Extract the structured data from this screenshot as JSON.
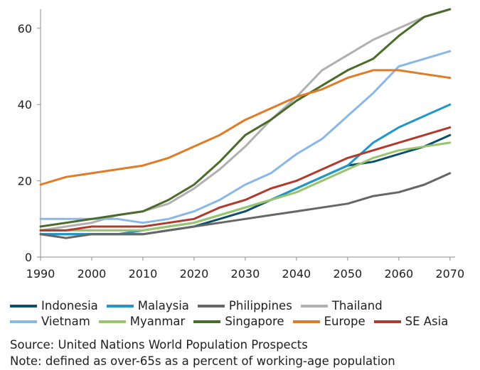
{
  "chart_data": {
    "type": "line",
    "x": [
      1990,
      1995,
      2000,
      2005,
      2010,
      2015,
      2020,
      2025,
      2030,
      2035,
      2040,
      2045,
      2050,
      2055,
      2060,
      2065,
      2070
    ],
    "xticks": [
      "1990",
      "2000",
      "2010",
      "2020",
      "2030",
      "2040",
      "2050",
      "2060",
      "2070"
    ],
    "yticks": [
      "0",
      "20",
      "40",
      "60"
    ],
    "xlim": [
      1990,
      2071
    ],
    "ylim": [
      0,
      65
    ],
    "grid": false,
    "legend_position": "bottom",
    "series": [
      {
        "name": "Indonesia",
        "color": "#0b4f6c",
        "values": [
          6,
          6,
          6,
          6,
          6,
          7,
          8,
          10,
          12,
          15,
          18,
          21,
          24,
          25,
          27,
          29,
          32
        ]
      },
      {
        "name": "Malaysia",
        "color": "#2196c9",
        "values": [
          6,
          6,
          6,
          6,
          7,
          8,
          9,
          11,
          13,
          15,
          18,
          21,
          24,
          30,
          34,
          37,
          40
        ]
      },
      {
        "name": "Philippines",
        "color": "#666666",
        "values": [
          6,
          5,
          6,
          6,
          6,
          7,
          8,
          9,
          10,
          11,
          12,
          13,
          14,
          16,
          17,
          19,
          22
        ]
      },
      {
        "name": "Thailand",
        "color": "#b0b0b0",
        "values": [
          7,
          8,
          9,
          11,
          12,
          14,
          18,
          23,
          29,
          36,
          42,
          49,
          53,
          57,
          60,
          63,
          65
        ]
      },
      {
        "name": "Vietnam",
        "color": "#8ab8e6",
        "values": [
          10,
          10,
          10,
          10,
          9,
          10,
          12,
          15,
          19,
          22,
          27,
          31,
          37,
          43,
          50,
          52,
          54
        ]
      },
      {
        "name": "Myanmar",
        "color": "#9ac46b",
        "values": [
          7,
          7,
          7,
          7,
          7,
          8,
          9,
          11,
          13,
          15,
          17,
          20,
          23,
          26,
          28,
          29,
          30
        ]
      },
      {
        "name": "Singapore",
        "color": "#4a6b2a",
        "values": [
          8,
          9,
          10,
          11,
          12,
          15,
          19,
          25,
          32,
          36,
          41,
          45,
          49,
          52,
          58,
          63,
          65
        ]
      },
      {
        "name": "Europe",
        "color": "#e07b27",
        "values": [
          19,
          21,
          22,
          23,
          24,
          26,
          29,
          32,
          36,
          39,
          42,
          44,
          47,
          49,
          49,
          48,
          47
        ]
      },
      {
        "name": "SE Asia",
        "color": "#b03a2e",
        "values": [
          7,
          7,
          8,
          8,
          8,
          9,
          10,
          13,
          15,
          18,
          20,
          23,
          26,
          28,
          30,
          32,
          34
        ]
      }
    ]
  },
  "legend_rows": [
    [
      "Indonesia",
      "Malaysia",
      "Philippines",
      "Thailand"
    ],
    [
      "Vietnam",
      "Myanmar",
      "Singapore",
      "Europe",
      "SE Asia"
    ]
  ],
  "notes": {
    "source": "Source: United Nations World Population Prospects",
    "note": "Note: defined as over-65s as a percent of working-age population"
  }
}
